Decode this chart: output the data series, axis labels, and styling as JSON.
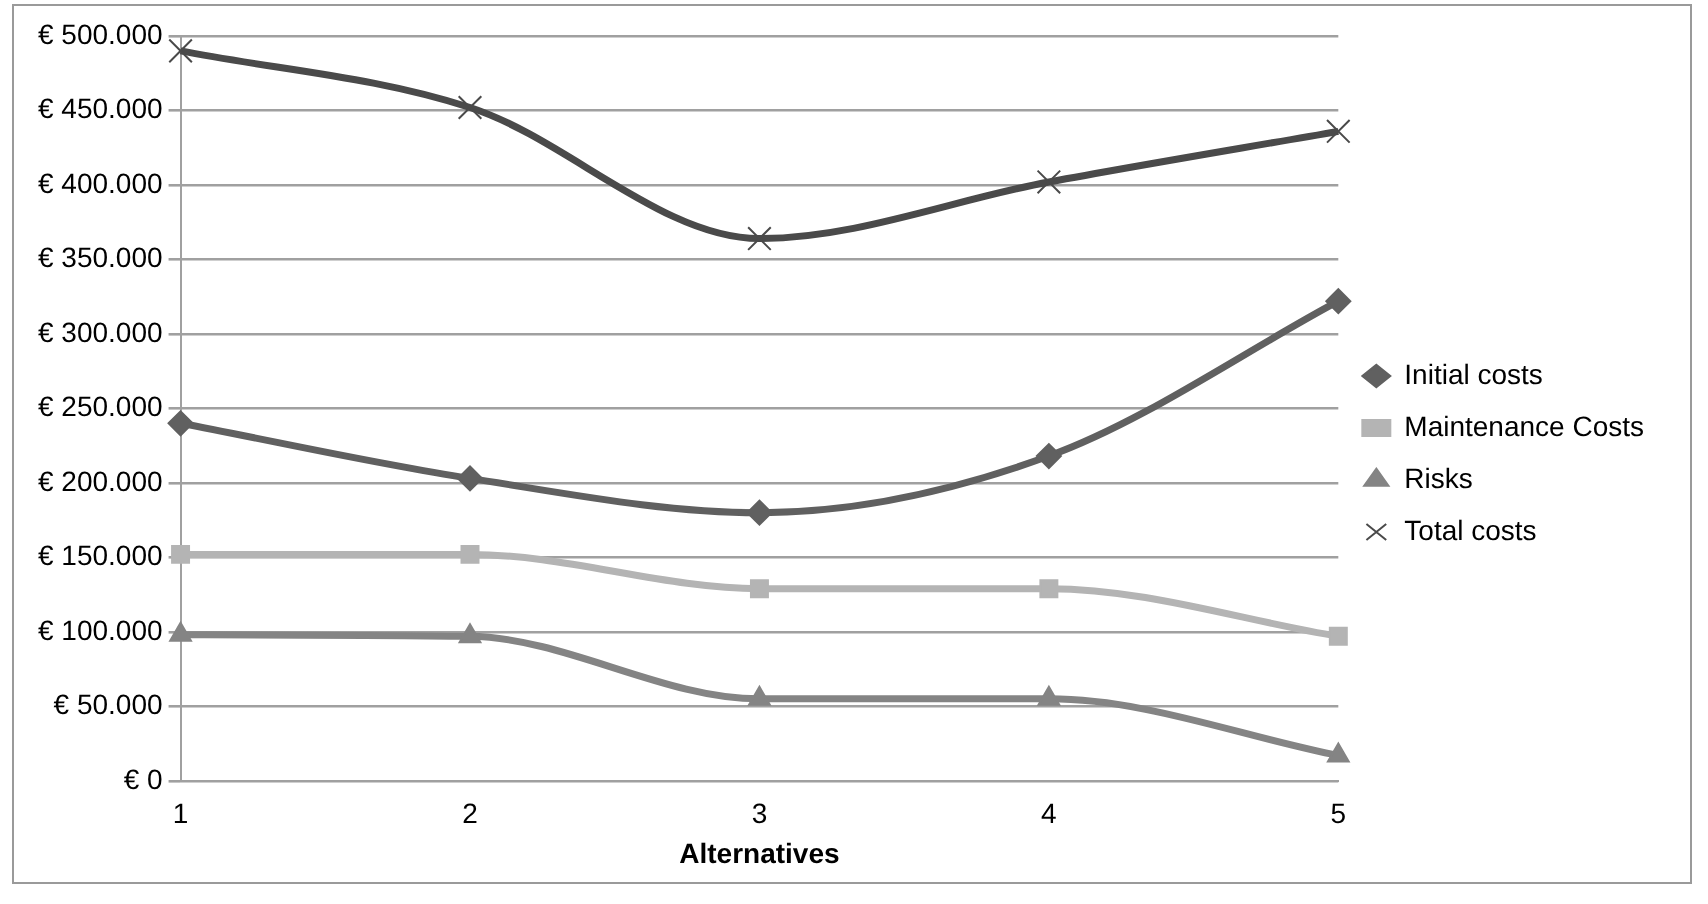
{
  "chart_data": {
    "type": "line",
    "xlabel": "Alternatives",
    "categories": [
      "1",
      "2",
      "3",
      "4",
      "5"
    ],
    "series": [
      {
        "name": "Initial costs",
        "color": "#606060",
        "marker": "diamond",
        "values": [
          240000,
          203000,
          180000,
          218000,
          322000
        ]
      },
      {
        "name": "Maintenance Costs",
        "color": "#b4b4b4",
        "marker": "square",
        "values": [
          152000,
          152000,
          129000,
          129000,
          97000
        ]
      },
      {
        "name": "Risks",
        "color": "#848484",
        "marker": "triangle",
        "values": [
          98000,
          97000,
          55000,
          55000,
          17000
        ]
      },
      {
        "name": "Total costs",
        "color": "#4a4a4a",
        "marker": "cross",
        "values": [
          490000,
          452000,
          364000,
          402000,
          436000
        ]
      }
    ],
    "ylim": [
      0,
      500000
    ],
    "yticks": [
      {
        "value": 0,
        "label": "€ 0"
      },
      {
        "value": 50000,
        "label": "€ 50.000"
      },
      {
        "value": 100000,
        "label": "€ 100.000"
      },
      {
        "value": 150000,
        "label": "€ 150.000"
      },
      {
        "value": 200000,
        "label": "€ 200.000"
      },
      {
        "value": 250000,
        "label": "€ 250.000"
      },
      {
        "value": 300000,
        "label": "€ 300.000"
      },
      {
        "value": 350000,
        "label": "€ 350.000"
      },
      {
        "value": 400000,
        "label": "€ 400.000"
      },
      {
        "value": 450000,
        "label": "€ 450.000"
      },
      {
        "value": 500000,
        "label": "€ 500.000"
      }
    ],
    "grid": "y",
    "legend": "right"
  }
}
